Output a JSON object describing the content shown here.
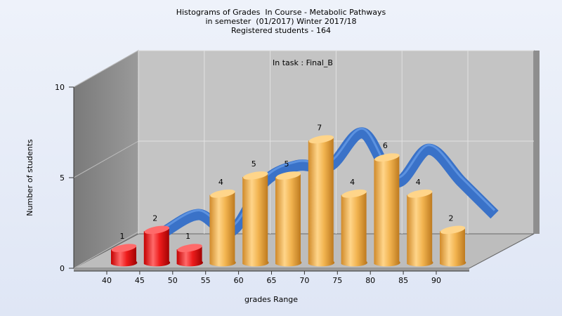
{
  "titles": {
    "line1": "Histograms of Grades  In Course - Metabolic Pathways",
    "line2": "in semester  (01/2017) Winter 2017/18",
    "line3": "Registered students - 164"
  },
  "task_label": "In task : Final_B",
  "chart_data": {
    "type": "bar",
    "title": "Histograms of Grades  In Course - Metabolic Pathways",
    "xlabel": "grades Range",
    "ylabel": "Number of students",
    "ylim": [
      0,
      10
    ],
    "yticks": [
      "0",
      "5",
      "10"
    ],
    "categories": [
      "40",
      "45",
      "50",
      "55",
      "60",
      "65",
      "70",
      "75",
      "80",
      "85",
      "90"
    ],
    "bars": [
      {
        "value": 1,
        "color": "red"
      },
      {
        "value": 2,
        "color": "red"
      },
      {
        "value": 1,
        "color": "red"
      },
      {
        "value": 4,
        "color": "orange"
      },
      {
        "value": 5,
        "color": "orange"
      },
      {
        "value": 5,
        "color": "orange"
      },
      {
        "value": 7,
        "color": "orange"
      },
      {
        "value": 4,
        "color": "orange"
      },
      {
        "value": 6,
        "color": "orange"
      },
      {
        "value": 4,
        "color": "orange"
      },
      {
        "value": 2,
        "color": "orange"
      }
    ],
    "curve": [
      1,
      2,
      1,
      4,
      5,
      5,
      7,
      4,
      6,
      4,
      2
    ],
    "colors": {
      "red_light": "#ff6a6a",
      "red_dark": "#b80000",
      "orange_light": "#ffd58a",
      "orange_dark": "#c8801f",
      "curve": "#3a72c8",
      "back_wall": "#c4c4c4",
      "side_wall": "#8a8a8a",
      "floor": "#bdbdbd"
    },
    "grid": true
  }
}
